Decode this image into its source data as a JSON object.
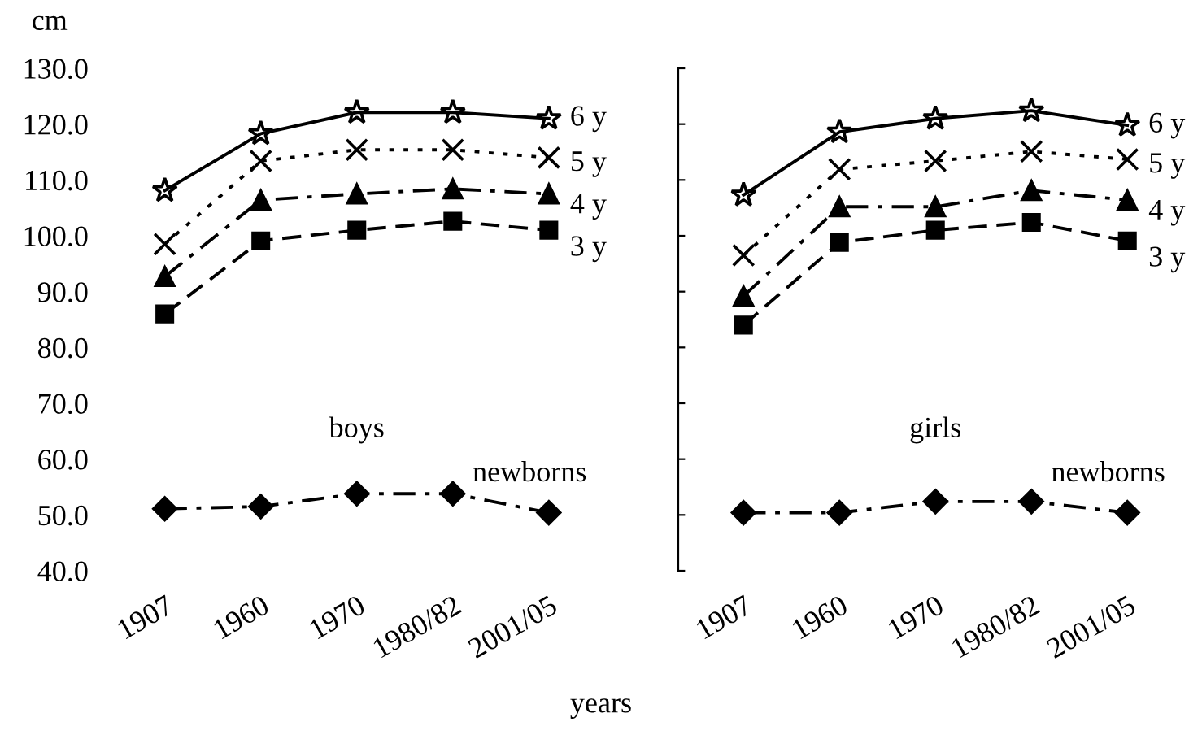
{
  "chart_data": [
    {
      "type": "line",
      "ylabel": "cm",
      "xlabel": "years",
      "annotations": [
        "boys"
      ],
      "categories": [
        "1907",
        "1960",
        "1970",
        "1980/82",
        "2001/05"
      ],
      "ylim": [
        40,
        130
      ],
      "yticks": [
        {
          "value": 40,
          "label": "40.0"
        },
        {
          "value": 50,
          "label": "50.0"
        },
        {
          "value": 60,
          "label": "60.0"
        },
        {
          "value": 70,
          "label": "70.0"
        },
        {
          "value": 80,
          "label": "80.0"
        },
        {
          "value": 90,
          "label": "90.0"
        },
        {
          "value": 100,
          "label": "100.0"
        },
        {
          "value": 110,
          "label": "110.0"
        },
        {
          "value": 120,
          "label": "120.0"
        },
        {
          "value": 130,
          "label": "130.0"
        }
      ],
      "grid": false,
      "legend": false,
      "series": [
        {
          "name": "6 y",
          "color": "#000000",
          "marker": "star",
          "line_style": "solid",
          "values": [
            108.1,
            118.3,
            122.1,
            122.1,
            121.0
          ]
        },
        {
          "name": "5 y",
          "color": "#000000",
          "marker": "cross",
          "line_style": "dotted",
          "values": [
            98.5,
            113.4,
            115.4,
            115.4,
            114.0
          ]
        },
        {
          "name": "4 y",
          "color": "#000000",
          "marker": "triangle",
          "line_style": "dashdot",
          "values": [
            92.7,
            106.4,
            107.5,
            108.4,
            107.5
          ]
        },
        {
          "name": "3 y",
          "color": "#000000",
          "marker": "square",
          "line_style": "dashed",
          "values": [
            86.0,
            99.1,
            101.0,
            102.6,
            101.0
          ]
        },
        {
          "name": "newborns",
          "color": "#000000",
          "marker": "diamond",
          "line_style": "dashdot",
          "values": [
            51.1,
            51.5,
            53.8,
            53.8,
            50.4
          ]
        }
      ]
    },
    {
      "type": "line",
      "annotations": [
        "girls"
      ],
      "categories": [
        "1907",
        "1960",
        "1970",
        "1980/82",
        "2001/05"
      ],
      "ylim": [
        40,
        130
      ],
      "yticks": [
        {
          "value": 40,
          "label": null
        },
        {
          "value": 50,
          "label": null
        },
        {
          "value": 60,
          "label": null
        },
        {
          "value": 70,
          "label": null
        },
        {
          "value": 80,
          "label": null
        },
        {
          "value": 90,
          "label": null
        },
        {
          "value": 100,
          "label": null
        },
        {
          "value": 110,
          "label": null
        },
        {
          "value": 120,
          "label": null
        },
        {
          "value": 130,
          "label": null
        }
      ],
      "tick_labels": "x",
      "grid": false,
      "legend": false,
      "series": [
        {
          "name": "6 y",
          "color": "#000000",
          "marker": "star",
          "line_style": "solid",
          "values": [
            107.3,
            118.6,
            121.0,
            122.4,
            119.8
          ]
        },
        {
          "name": "5 y",
          "color": "#000000",
          "marker": "cross",
          "line_style": "dotted",
          "values": [
            96.5,
            111.9,
            113.4,
            115.1,
            113.7
          ]
        },
        {
          "name": "4 y",
          "color": "#000000",
          "marker": "triangle",
          "line_style": "dashdot",
          "values": [
            89.2,
            105.2,
            105.2,
            108.1,
            106.4
          ]
        },
        {
          "name": "3 y",
          "color": "#000000",
          "marker": "square",
          "line_style": "dashed",
          "values": [
            84.0,
            98.8,
            101.0,
            102.4,
            99.1
          ]
        },
        {
          "name": "newborns",
          "color": "#000000",
          "marker": "diamond",
          "line_style": "dashdot",
          "values": [
            50.4,
            50.4,
            52.4,
            52.4,
            50.4
          ]
        }
      ]
    }
  ]
}
